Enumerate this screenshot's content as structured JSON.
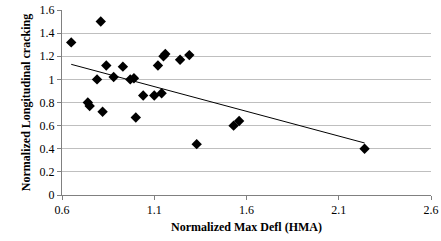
{
  "chart_data": {
    "type": "scatter",
    "x_label": "Normalized Max Defl (HMA)",
    "y_label": "Normalized Longitudinal cracking",
    "series": [
      {
        "type": "scatter",
        "marker": "diamond",
        "color": "#000000",
        "x": [
          0.65,
          0.81,
          0.74,
          0.75,
          0.79,
          0.82,
          0.84,
          0.88,
          0.93,
          0.97,
          0.99,
          1.0,
          1.04,
          1.1,
          1.12,
          1.14,
          1.15,
          1.16,
          1.24,
          1.29,
          1.33,
          1.53,
          1.56,
          2.24
        ],
        "values": [
          1.32,
          1.5,
          0.8,
          0.77,
          1.0,
          0.72,
          1.12,
          1.02,
          1.11,
          1.0,
          1.01,
          0.67,
          0.86,
          0.86,
          1.12,
          0.88,
          1.2,
          1.22,
          1.17,
          1.21,
          0.44,
          0.6,
          0.64,
          0.4
        ]
      },
      {
        "type": "line",
        "color": "#000000",
        "x": [
          0.65,
          2.24
        ],
        "values": [
          1.13,
          0.45
        ]
      }
    ],
    "xlim": [
      0.6,
      2.6
    ],
    "ylim": [
      0,
      1.6
    ],
    "xticks": [
      0.6,
      1.1,
      1.6,
      2.1,
      2.6
    ],
    "yticks": [
      0,
      0.2,
      0.4,
      0.6,
      0.8,
      1,
      1.2,
      1.4,
      1.6
    ],
    "grid": true
  }
}
